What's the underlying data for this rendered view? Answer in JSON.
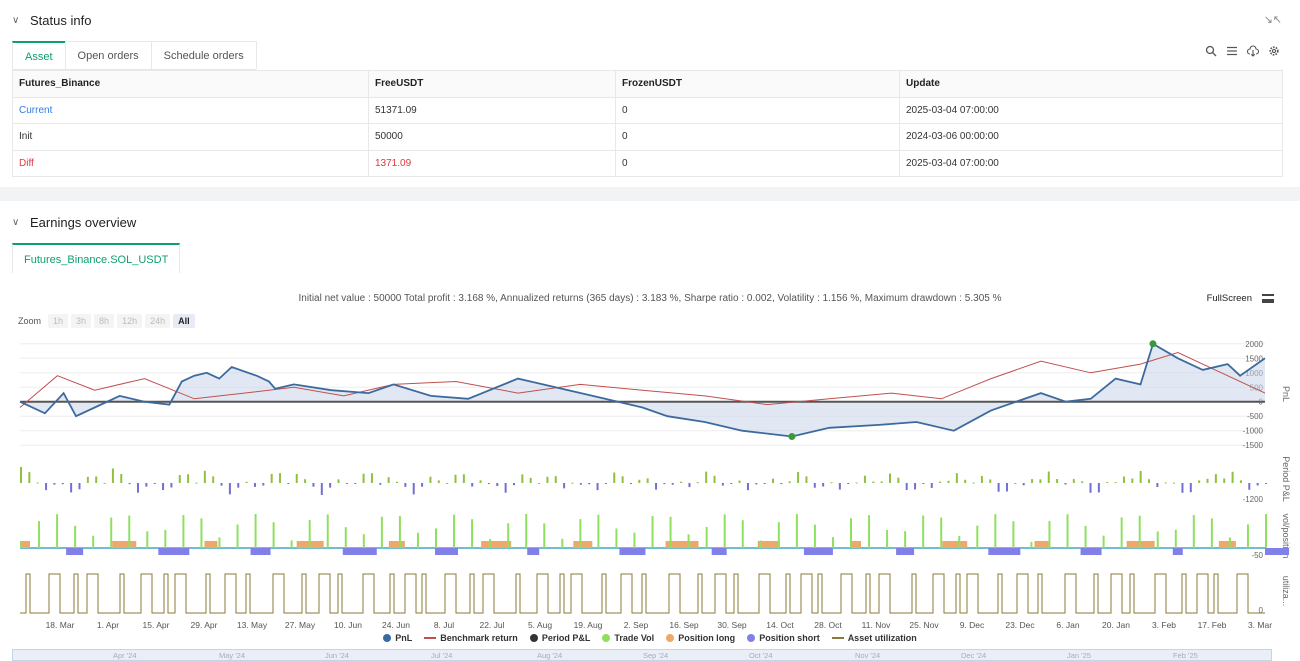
{
  "status": {
    "title": "Status info",
    "tabs": [
      "Asset",
      "Open orders",
      "Schedule orders"
    ],
    "table": {
      "headers": [
        "Futures_Binance",
        "FreeUSDT",
        "FrozenUSDT",
        "Update"
      ],
      "rows": [
        {
          "label": "Current",
          "free": "51371.09",
          "frozen": "0",
          "update": "2025-03-04 07:00:00"
        },
        {
          "label": "Init",
          "free": "50000",
          "frozen": "0",
          "update": "2024-03-06 00:00:00"
        },
        {
          "label": "Diff",
          "free": "1371.09",
          "frozen": "0",
          "update": "2025-03-04 07:00:00"
        }
      ]
    }
  },
  "earnings": {
    "title": "Earnings overview",
    "tab": "Futures_Binance.SOL_USDT",
    "summary": "Initial net value : 50000 Total profit : 3.168 %, Annualized returns (365 days) : 3.183 %, Sharpe ratio : 0.002, Volatility : 1.156 %, Maximum drawdown : 5.305 %",
    "fullscreen": "FullScreen",
    "zoom_label": "Zoom",
    "zoom_buttons": [
      "1h",
      "3h",
      "8h",
      "12h",
      "24h",
      "All"
    ],
    "legend": [
      {
        "label": "PnL",
        "color": "#3d6a9e",
        "kind": "dot"
      },
      {
        "label": "Benchmark return",
        "color": "#c0504d",
        "kind": "line"
      },
      {
        "label": "Period P&L",
        "color": "#333333",
        "kind": "dot"
      },
      {
        "label": "Trade Vol",
        "color": "#90e060",
        "kind": "dot"
      },
      {
        "label": "Position long",
        "color": "#f0a868",
        "kind": "dot"
      },
      {
        "label": "Position short",
        "color": "#8080e8",
        "kind": "dot"
      },
      {
        "label": "Asset utilization",
        "color": "#8b7a3a",
        "kind": "line"
      }
    ],
    "navigator_labels": [
      "Apr '24",
      "May '24",
      "Jun '24",
      "Jul '24",
      "Aug '24",
      "Sep '24",
      "Oct '24",
      "Nov '24",
      "Dec '24",
      "Jan '25",
      "Feb '25"
    ]
  },
  "chart_data": {
    "type": "line",
    "x_ticks": [
      "18. Mar",
      "1. Apr",
      "15. Apr",
      "29. Apr",
      "13. May",
      "27. May",
      "10. Jun",
      "24. Jun",
      "8. Jul",
      "22. Jul",
      "5. Aug",
      "19. Aug",
      "2. Sep",
      "16. Sep",
      "30. Sep",
      "14. Oct",
      "28. Oct",
      "11. Nov",
      "25. Nov",
      "9. Dec",
      "23. Dec",
      "6. Jan",
      "20. Jan",
      "3. Feb",
      "17. Feb",
      "3. Mar"
    ],
    "pnl_axis": {
      "label": "PnL",
      "ticks": [
        2000,
        1500,
        1000,
        500,
        0,
        -500,
        -1000,
        -1500
      ],
      "ylim": [
        -1700,
        2200
      ]
    },
    "period_axis": {
      "label": "Period P&L",
      "ticks": [
        -1200
      ]
    },
    "vol_axis": {
      "label": "vol/position",
      "ticks": [
        -50
      ]
    },
    "util_axis": {
      "label": "utiliza...",
      "ticks": [
        0
      ]
    },
    "series": [
      {
        "name": "PnL",
        "x": [
          0,
          0.02,
          0.035,
          0.045,
          0.06,
          0.08,
          0.1,
          0.12,
          0.13,
          0.14,
          0.15,
          0.16,
          0.17,
          0.19,
          0.2,
          0.205,
          0.22,
          0.25,
          0.28,
          0.3,
          0.33,
          0.36,
          0.4,
          0.43,
          0.46,
          0.5,
          0.52,
          0.55,
          0.58,
          0.62,
          0.65,
          0.69,
          0.72,
          0.75,
          0.78,
          0.82,
          0.84,
          0.86,
          0.88,
          0.9,
          0.91,
          0.93,
          0.95,
          0.97,
          0.98,
          1.0
        ],
        "y": [
          0,
          -400,
          300,
          -500,
          -200,
          200,
          0,
          -100,
          700,
          900,
          1000,
          800,
          1200,
          900,
          700,
          450,
          600,
          400,
          300,
          600,
          200,
          100,
          800,
          500,
          200,
          -200,
          -500,
          -700,
          -1000,
          -1200,
          -900,
          -800,
          -700,
          -1000,
          -300,
          300,
          0,
          100,
          800,
          600,
          2000,
          1500,
          1100,
          1300,
          900,
          1500
        ]
      },
      {
        "name": "Benchmark return",
        "x": [
          0,
          0.03,
          0.06,
          0.1,
          0.14,
          0.18,
          0.22,
          0.26,
          0.3,
          0.35,
          0.4,
          0.45,
          0.5,
          0.55,
          0.6,
          0.65,
          0.7,
          0.74,
          0.78,
          0.82,
          0.86,
          0.9,
          0.93,
          0.96,
          1.0
        ],
        "y": [
          -200,
          900,
          400,
          800,
          100,
          300,
          500,
          200,
          600,
          700,
          300,
          600,
          400,
          200,
          -100,
          100,
          300,
          100,
          800,
          1400,
          1000,
          1300,
          1700,
          1100,
          300
        ]
      }
    ],
    "pnl_markers": [
      {
        "label": "max",
        "value": 1900
      },
      {
        "label": "min",
        "value": -1350
      }
    ]
  }
}
